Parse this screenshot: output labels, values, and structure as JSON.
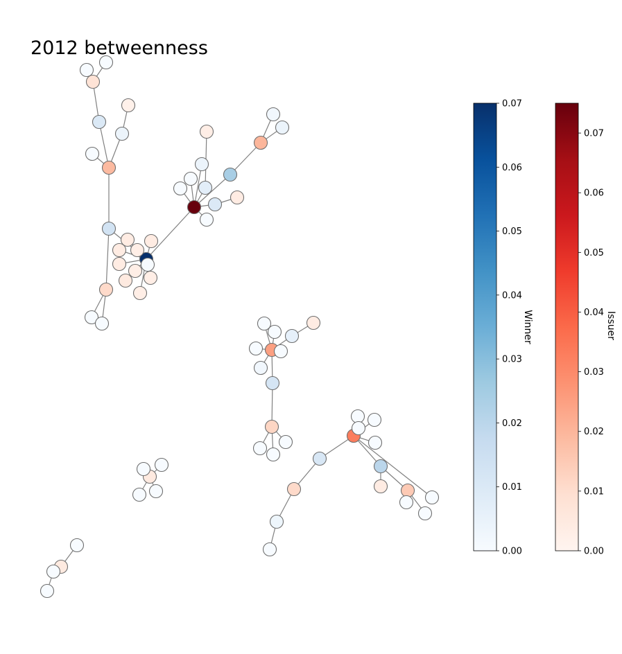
{
  "chart_data": {
    "type": "network",
    "title": "2012 betweenness",
    "colorbars": [
      {
        "name": "Winner",
        "colormap": "Blues",
        "min": 0.0,
        "max": 0.07,
        "ticks": [
          "0.00",
          "0.01",
          "0.02",
          "0.03",
          "0.04",
          "0.05",
          "0.06",
          "0.07"
        ]
      },
      {
        "name": "Issuer",
        "colormap": "Reds",
        "min": 0.0,
        "max": 0.075,
        "ticks": [
          "0.00",
          "0.01",
          "0.02",
          "0.03",
          "0.04",
          "0.05",
          "0.06",
          "0.07"
        ]
      }
    ],
    "node_style": {
      "edge_color": "#808080",
      "node_outline": "#6e6e6e"
    },
    "nodes": [
      {
        "id": "a1",
        "role": "winner",
        "value": 0.0
      },
      {
        "id": "a2",
        "role": "winner",
        "value": 0.0
      },
      {
        "id": "a3",
        "role": "issuer",
        "value": 0.008
      },
      {
        "id": "a4",
        "role": "winner",
        "value": 0.01
      },
      {
        "id": "a5",
        "role": "issuer",
        "value": 0.002
      },
      {
        "id": "a6",
        "role": "winner",
        "value": 0.004
      },
      {
        "id": "a7",
        "role": "winner",
        "value": 0.0
      },
      {
        "id": "a8",
        "role": "issuer",
        "value": 0.019
      },
      {
        "id": "a9",
        "role": "winner",
        "value": 0.013
      },
      {
        "id": "a10",
        "role": "issuer",
        "value": 0.011
      },
      {
        "id": "a11",
        "role": "winner",
        "value": 0.0
      },
      {
        "id": "a12",
        "role": "winner",
        "value": 0.0
      },
      {
        "id": "h1",
        "role": "winner",
        "value": 0.07
      },
      {
        "id": "h2",
        "role": "issuer",
        "value": 0.004
      },
      {
        "id": "h3",
        "role": "issuer",
        "value": 0.004
      },
      {
        "id": "h4",
        "role": "issuer",
        "value": 0.003
      },
      {
        "id": "h5",
        "role": "issuer",
        "value": 0.004
      },
      {
        "id": "h6",
        "role": "issuer",
        "value": 0.004
      },
      {
        "id": "h7",
        "role": "issuer",
        "value": 0.003
      },
      {
        "id": "h8",
        "role": "issuer",
        "value": 0.005
      },
      {
        "id": "h9",
        "role": "winner",
        "value": 0.0
      },
      {
        "id": "h10",
        "role": "issuer",
        "value": 0.003
      },
      {
        "id": "h11",
        "role": "issuer",
        "value": 0.003
      },
      {
        "id": "b1",
        "role": "issuer",
        "value": 0.075
      },
      {
        "id": "b2",
        "role": "winner",
        "value": 0.0
      },
      {
        "id": "b3",
        "role": "winner",
        "value": 0.0
      },
      {
        "id": "b4",
        "role": "winner",
        "value": 0.004
      },
      {
        "id": "b5",
        "role": "winner",
        "value": 0.007
      },
      {
        "id": "b6",
        "role": "issuer",
        "value": 0.003
      },
      {
        "id": "b7",
        "role": "winner",
        "value": 0.0
      },
      {
        "id": "b8",
        "role": "winner",
        "value": 0.01
      },
      {
        "id": "b9",
        "role": "issuer",
        "value": 0.004
      },
      {
        "id": "b10",
        "role": "winner",
        "value": 0.024
      },
      {
        "id": "b11",
        "role": "issuer",
        "value": 0.02
      },
      {
        "id": "b12",
        "role": "winner",
        "value": 0.002
      },
      {
        "id": "b13",
        "role": "winner",
        "value": 0.004
      },
      {
        "id": "c1",
        "role": "issuer",
        "value": 0.025
      },
      {
        "id": "c2",
        "role": "winner",
        "value": 0.0
      },
      {
        "id": "c3",
        "role": "winner",
        "value": 0.002
      },
      {
        "id": "c4",
        "role": "winner",
        "value": 0.006
      },
      {
        "id": "c5",
        "role": "issuer",
        "value": 0.004
      },
      {
        "id": "c6",
        "role": "winner",
        "value": 0.0
      },
      {
        "id": "c7",
        "role": "winner",
        "value": 0.0
      },
      {
        "id": "c8",
        "role": "winner",
        "value": 0.0
      },
      {
        "id": "c9",
        "role": "winner",
        "value": 0.012
      },
      {
        "id": "c10",
        "role": "issuer",
        "value": 0.012
      },
      {
        "id": "c11",
        "role": "winner",
        "value": 0.0
      },
      {
        "id": "c12",
        "role": "winner",
        "value": 0.0
      },
      {
        "id": "c13",
        "role": "winner",
        "value": 0.0
      },
      {
        "id": "d1",
        "role": "issuer",
        "value": 0.033
      },
      {
        "id": "d2",
        "role": "winner",
        "value": 0.0
      },
      {
        "id": "d3",
        "role": "winner",
        "value": 0.0
      },
      {
        "id": "d4",
        "role": "winner",
        "value": 0.0
      },
      {
        "id": "d5",
        "role": "winner",
        "value": 0.0
      },
      {
        "id": "d6",
        "role": "winner",
        "value": 0.011
      },
      {
        "id": "d7",
        "role": "issuer",
        "value": 0.011
      },
      {
        "id": "d8",
        "role": "winner",
        "value": 0.003
      },
      {
        "id": "d9",
        "role": "winner",
        "value": 0.0
      },
      {
        "id": "d10",
        "role": "winner",
        "value": 0.02
      },
      {
        "id": "d11",
        "role": "issuer",
        "value": 0.004
      },
      {
        "id": "d12",
        "role": "issuer",
        "value": 0.015
      },
      {
        "id": "d13",
        "role": "winner",
        "value": 0.0
      },
      {
        "id": "d14",
        "role": "winner",
        "value": 0.0
      },
      {
        "id": "d15",
        "role": "winner",
        "value": 0.0
      },
      {
        "id": "e1",
        "role": "issuer",
        "value": 0.005
      },
      {
        "id": "e2",
        "role": "winner",
        "value": 0.0
      },
      {
        "id": "e3",
        "role": "winner",
        "value": 0.0
      },
      {
        "id": "e4",
        "role": "winner",
        "value": 0.0
      },
      {
        "id": "e5",
        "role": "winner",
        "value": 0.0
      },
      {
        "id": "f1",
        "role": "winner",
        "value": 0.0
      },
      {
        "id": "f2",
        "role": "issuer",
        "value": 0.005
      },
      {
        "id": "f3",
        "role": "winner",
        "value": 0.0
      },
      {
        "id": "f4",
        "role": "winner",
        "value": 0.0
      }
    ],
    "edges": [
      [
        "a3",
        "a1"
      ],
      [
        "a3",
        "a2"
      ],
      [
        "a3",
        "a4"
      ],
      [
        "a4",
        "a8"
      ],
      [
        "a5",
        "a6"
      ],
      [
        "a6",
        "a8"
      ],
      [
        "a7",
        "a8"
      ],
      [
        "a8",
        "a9"
      ],
      [
        "a9",
        "a10"
      ],
      [
        "a10",
        "a11"
      ],
      [
        "a10",
        "a12"
      ],
      [
        "a9",
        "h1"
      ],
      [
        "h1",
        "h2"
      ],
      [
        "h1",
        "h3"
      ],
      [
        "h1",
        "h4"
      ],
      [
        "h1",
        "h5"
      ],
      [
        "h1",
        "h6"
      ],
      [
        "h1",
        "h7"
      ],
      [
        "h1",
        "h8"
      ],
      [
        "h1",
        "h9"
      ],
      [
        "h1",
        "h10"
      ],
      [
        "h1",
        "h11"
      ],
      [
        "h1",
        "b1"
      ],
      [
        "b1",
        "b2"
      ],
      [
        "b1",
        "b3"
      ],
      [
        "b1",
        "b4"
      ],
      [
        "b1",
        "b5"
      ],
      [
        "b1",
        "b7"
      ],
      [
        "b1",
        "b8"
      ],
      [
        "b5",
        "b6"
      ],
      [
        "b8",
        "b9"
      ],
      [
        "b1",
        "b10"
      ],
      [
        "b10",
        "b11"
      ],
      [
        "b11",
        "b12"
      ],
      [
        "b11",
        "b13"
      ],
      [
        "c1",
        "c2"
      ],
      [
        "c1",
        "c3"
      ],
      [
        "c1",
        "c4"
      ],
      [
        "c4",
        "c5"
      ],
      [
        "c1",
        "c6"
      ],
      [
        "c1",
        "c7"
      ],
      [
        "c1",
        "c8"
      ],
      [
        "c1",
        "c9"
      ],
      [
        "c9",
        "c10"
      ],
      [
        "c10",
        "c11"
      ],
      [
        "c10",
        "c12"
      ],
      [
        "c10",
        "c13"
      ],
      [
        "d1",
        "d2"
      ],
      [
        "d1",
        "d3"
      ],
      [
        "d1",
        "d4"
      ],
      [
        "d1",
        "d5"
      ],
      [
        "d1",
        "d6"
      ],
      [
        "d6",
        "d7"
      ],
      [
        "d7",
        "d8"
      ],
      [
        "d8",
        "d9"
      ],
      [
        "d1",
        "d10"
      ],
      [
        "d10",
        "d11"
      ],
      [
        "d10",
        "d12"
      ],
      [
        "d12",
        "d13"
      ],
      [
        "d12",
        "d14"
      ],
      [
        "d1",
        "d15"
      ],
      [
        "e1",
        "e2"
      ],
      [
        "e1",
        "e3"
      ],
      [
        "e1",
        "e4"
      ],
      [
        "e1",
        "e5"
      ],
      [
        "f1",
        "f2"
      ],
      [
        "f2",
        "f3"
      ],
      [
        "f3",
        "f4"
      ]
    ]
  }
}
